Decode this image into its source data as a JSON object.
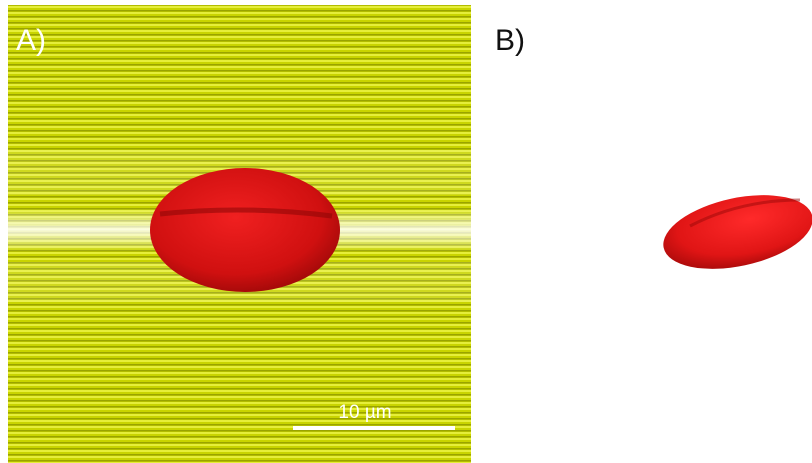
{
  "panels": [
    {
      "label": "A)",
      "scale_bar": "10 µm"
    },
    {
      "label": "B)"
    }
  ]
}
